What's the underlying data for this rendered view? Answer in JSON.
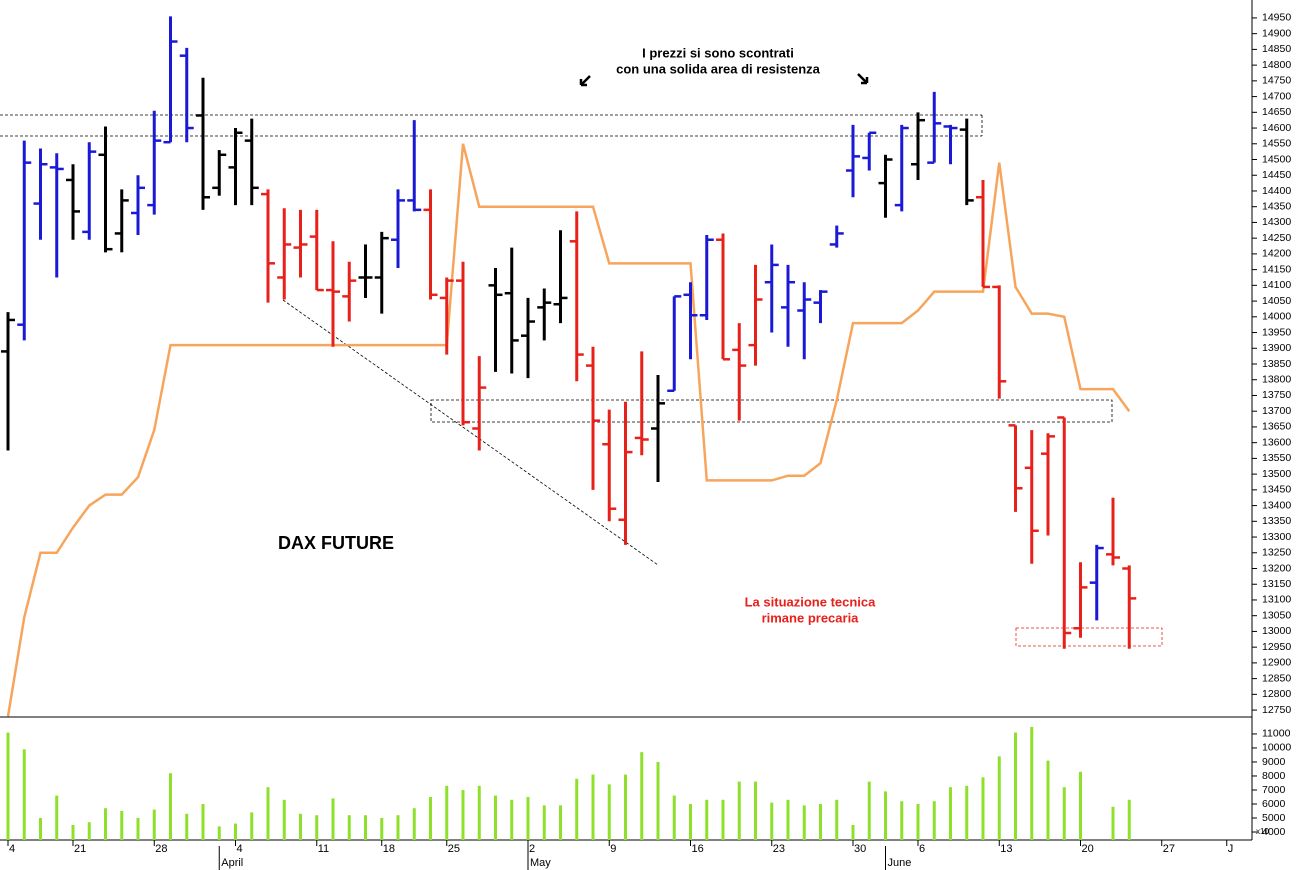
{
  "chart_data": [
    {
      "type": "ohlc",
      "title": "DAX FUTURE",
      "annotations": [
        "I prezzi si sono scontrati",
        "con una solida area di resistenza",
        "La situazione tecnica",
        "rimane precaria"
      ],
      "categories": [
        "4",
        null,
        null,
        null,
        "21",
        null,
        null,
        null,
        null,
        "28",
        null,
        null,
        null,
        null,
        "4",
        null,
        null,
        null,
        null,
        "11",
        null,
        null,
        null,
        "18",
        null,
        null,
        null,
        "25",
        null,
        null,
        null,
        null,
        "2",
        null,
        null,
        null,
        null,
        "9",
        null,
        null,
        null,
        null,
        "16",
        null,
        null,
        null,
        null,
        "23",
        null,
        null,
        null,
        null,
        "30",
        null,
        null,
        null,
        "6",
        null,
        null,
        null,
        null,
        "13",
        null,
        null,
        null,
        null,
        "20",
        null,
        null,
        null,
        null,
        "27",
        null,
        null,
        null,
        "J"
      ],
      "months": [
        null,
        null,
        null,
        null,
        null,
        null,
        null,
        null,
        null,
        null,
        null,
        null,
        null,
        "April",
        null,
        null,
        null,
        null,
        null,
        null,
        null,
        null,
        null,
        null,
        null,
        null,
        null,
        null,
        null,
        null,
        null,
        null,
        "May",
        null,
        null,
        null,
        null,
        null,
        null,
        null,
        null,
        null,
        null,
        null,
        null,
        null,
        null,
        null,
        null,
        null,
        null,
        null,
        null,
        null,
        "June",
        null,
        null,
        null,
        null,
        null,
        null,
        null,
        null,
        null,
        null,
        null,
        null,
        null,
        null,
        null,
        null,
        null,
        null,
        null,
        null,
        null,
        null
      ],
      "open": [
        13890,
        13975,
        14360,
        14475,
        14435,
        14270,
        14515,
        14265,
        14330,
        14355,
        14555,
        14830,
        14640,
        14410,
        14475,
        14560,
        14390,
        14125,
        14220,
        14255,
        14085,
        14065,
        14125,
        14125,
        14245,
        14370,
        14340,
        14060,
        14115,
        13645,
        14100,
        14075,
        13940,
        14030,
        14040,
        14240,
        13845,
        13595,
        13355,
        13615,
        13645,
        13765,
        14070,
        14005,
        14245,
        13895,
        13910,
        14110,
        14030,
        14020,
        14045,
        14230,
        14465,
        14505,
        14425,
        14355,
        14485,
        14490,
        14605,
        14595,
        14380,
        14095,
        13655,
        13520,
        13565,
        13680,
        13010,
        13155,
        13245,
        13200,
        null,
        null,
        null,
        null,
        null,
        null,
        null
      ],
      "high": [
        14015,
        14560,
        14535,
        14520,
        14485,
        14555,
        14605,
        14405,
        14450,
        14655,
        14955,
        14855,
        14760,
        14530,
        14600,
        14630,
        14405,
        14345,
        14340,
        14340,
        14240,
        14175,
        14230,
        14270,
        14405,
        14625,
        14405,
        14125,
        14175,
        13875,
        14155,
        14220,
        14060,
        14090,
        14275,
        14335,
        13905,
        13705,
        13730,
        13890,
        13815,
        14065,
        14110,
        14260,
        14265,
        13980,
        14165,
        14230,
        14165,
        14110,
        14085,
        14290,
        14610,
        14585,
        14515,
        14610,
        14650,
        14715,
        14610,
        14630,
        14435,
        14100,
        13655,
        13640,
        13630,
        13680,
        13220,
        13275,
        13425,
        13210,
        null,
        null,
        null,
        null,
        null,
        null,
        null
      ],
      "low": [
        13575,
        13925,
        14245,
        14125,
        14245,
        14245,
        14205,
        14205,
        14260,
        14325,
        14555,
        14555,
        14340,
        14385,
        14355,
        14355,
        14045,
        14055,
        14125,
        14085,
        13905,
        13985,
        14060,
        14010,
        14155,
        14335,
        14055,
        13880,
        13655,
        13575,
        13825,
        13820,
        13805,
        13925,
        13980,
        13795,
        13450,
        13350,
        13275,
        13560,
        13475,
        13765,
        13865,
        13990,
        13865,
        13670,
        13845,
        13950,
        13905,
        13865,
        13980,
        14220,
        14380,
        14465,
        14315,
        14335,
        14435,
        14490,
        14485,
        14355,
        14095,
        13740,
        13380,
        13215,
        13305,
        12945,
        12980,
        13035,
        13210,
        12945,
        null,
        null,
        null,
        null,
        null,
        null,
        null
      ],
      "close": [
        13990,
        14490,
        14485,
        14470,
        14335,
        14525,
        14215,
        14370,
        14410,
        14560,
        14875,
        14600,
        14380,
        14515,
        14585,
        14410,
        14170,
        14230,
        14230,
        14085,
        14080,
        14115,
        14125,
        14250,
        14370,
        14340,
        14070,
        14115,
        13665,
        13775,
        14070,
        13925,
        13985,
        14045,
        14060,
        13880,
        13670,
        13390,
        13570,
        13610,
        13725,
        14065,
        14005,
        14245,
        13865,
        13845,
        14055,
        14165,
        14110,
        14055,
        14080,
        14265,
        14510,
        14585,
        14500,
        14600,
        14625,
        14615,
        14600,
        14370,
        14095,
        13795,
        13455,
        13320,
        13620,
        12995,
        13140,
        13265,
        13235,
        13105,
        null,
        null,
        null,
        null,
        null,
        null,
        null
      ],
      "bar_colors": [
        "#000000",
        "#1a1ad6",
        "#1a1ad6",
        "#1a1ad6",
        "#000000",
        "#1a1ad6",
        "#000000",
        "#000000",
        "#1a1ad6",
        "#1a1ad6",
        "#1a1ad6",
        "#1a1ad6",
        "#000000",
        "#000000",
        "#000000",
        "#000000",
        "#e8201a",
        "#e8201a",
        "#e8201a",
        "#e8201a",
        "#e8201a",
        "#e8201a",
        "#000000",
        "#000000",
        "#1a1ad6",
        "#1a1ad6",
        "#e8201a",
        "#e8201a",
        "#e8201a",
        "#e8201a",
        "#000000",
        "#000000",
        "#000000",
        "#000000",
        "#000000",
        "#e8201a",
        "#e8201a",
        "#e8201a",
        "#e8201a",
        "#e8201a",
        "#000000",
        "#1a1ad6",
        "#1a1ad6",
        "#1a1ad6",
        "#e8201a",
        "#e8201a",
        "#e8201a",
        "#1a1ad6",
        "#1a1ad6",
        "#1a1ad6",
        "#1a1ad6",
        "#1a1ad6",
        "#1a1ad6",
        "#1a1ad6",
        "#000000",
        "#1a1ad6",
        "#000000",
        "#1a1ad6",
        "#1a1ad6",
        "#000000",
        "#e8201a",
        "#e8201a",
        "#e8201a",
        "#e8201a",
        "#e8201a",
        "#e8201a",
        "#e8201a",
        "#1a1ad6",
        "#e8201a",
        "#e8201a",
        null,
        null,
        null,
        null,
        null,
        null,
        null
      ],
      "overlay": {
        "color": "#f7a55c",
        "values": [
          12730,
          13045,
          13250,
          13250,
          13330,
          13400,
          13435,
          13435,
          13490,
          13640,
          13910,
          13910,
          13910,
          13910,
          13910,
          13910,
          13910,
          13910,
          13910,
          13910,
          13910,
          13910,
          13910,
          13910,
          13910,
          13910,
          13910,
          13910,
          14550,
          14350,
          14350,
          14350,
          14350,
          14350,
          14350,
          14350,
          14350,
          14170,
          14170,
          14170,
          14170,
          14170,
          14170,
          13480,
          13480,
          13480,
          13480,
          13480,
          13495,
          13495,
          13535,
          13735,
          13980,
          13980,
          13980,
          13980,
          14020,
          14080,
          14080,
          14080,
          14080,
          14490,
          14095,
          14010,
          14010,
          14000,
          13770,
          13770,
          13770,
          13700,
          null,
          null,
          null,
          null,
          null,
          null,
          null
        ]
      },
      "ylim": [
        12728,
        15007
      ],
      "yticks": [
        12750,
        12800,
        12850,
        12900,
        12950,
        13000,
        13050,
        13100,
        13150,
        13200,
        13250,
        13300,
        13350,
        13400,
        13450,
        13500,
        13550,
        13600,
        13650,
        13700,
        13750,
        13800,
        13850,
        13900,
        13950,
        14000,
        14050,
        14100,
        14150,
        14200,
        14250,
        14300,
        14350,
        14400,
        14450,
        14500,
        14550,
        14600,
        14650,
        14700,
        14750,
        14800,
        14850,
        14900,
        14950
      ]
    },
    {
      "type": "bar",
      "color": "#8ee02a",
      "unit": "x10",
      "values": [
        11100,
        9900,
        5000,
        6600,
        4500,
        4700,
        5700,
        5500,
        5000,
        5600,
        8200,
        5300,
        6000,
        4400,
        4600,
        5400,
        7200,
        6300,
        5300,
        5200,
        6400,
        5200,
        5200,
        5000,
        5200,
        5700,
        6500,
        7300,
        7000,
        7300,
        6600,
        6300,
        6500,
        5900,
        5900,
        7800,
        8100,
        7400,
        8100,
        9700,
        9000,
        6600,
        6000,
        6300,
        6300,
        7600,
        7600,
        6100,
        6300,
        5900,
        6000,
        6300,
        4500,
        7600,
        6900,
        6200,
        6000,
        6200,
        7200,
        7300,
        7900,
        9400,
        11100,
        11500,
        9100,
        7200,
        8300,
        null,
        5800,
        6300,
        null,
        null,
        null,
        null,
        null,
        null,
        null
      ],
      "ylim": [
        3430,
        12210
      ],
      "yticks": [
        4000,
        5000,
        6000,
        7000,
        8000,
        9000,
        10000,
        11000
      ]
    }
  ]
}
